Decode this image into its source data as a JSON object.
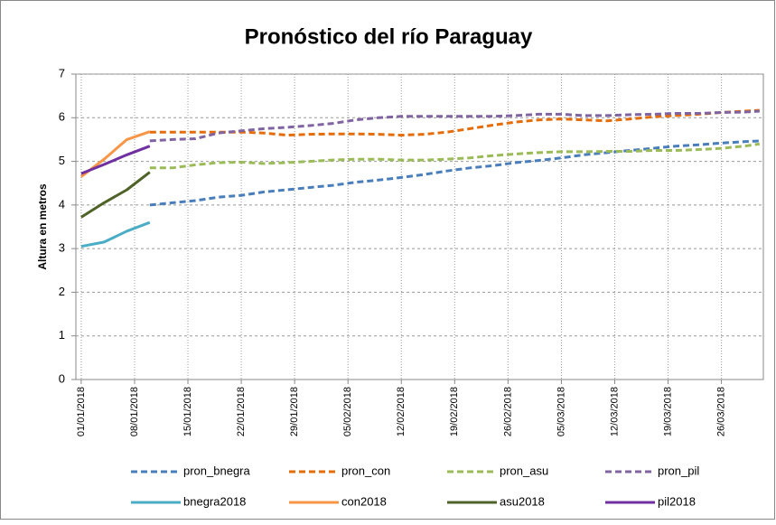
{
  "chart_data": {
    "type": "line",
    "title": "Pronóstico del río Paraguay",
    "y_label": "Altura en metros",
    "x": [
      "01/01/2018",
      "04/01/2018",
      "07/01/2018",
      "10/01/2018",
      "13/01/2018",
      "16/01/2018",
      "19/01/2018",
      "22/01/2018",
      "25/01/2018",
      "28/01/2018",
      "31/01/2018",
      "03/02/2018",
      "06/02/2018",
      "09/02/2018",
      "12/02/2018",
      "15/02/2018",
      "18/02/2018",
      "21/02/2018",
      "24/02/2018",
      "27/02/2018",
      "02/03/2018",
      "05/03/2018",
      "08/03/2018",
      "11/03/2018",
      "14/03/2018",
      "17/03/2018",
      "20/03/2018",
      "23/03/2018",
      "26/03/2018",
      "29/03/2018",
      "31/03/2018"
    ],
    "xlim": [
      "01/01/2018",
      "31/03/2018"
    ],
    "xticks": [
      "01/01/2018",
      "08/01/2018",
      "15/01/2018",
      "22/01/2018",
      "29/01/2018",
      "05/02/2018",
      "12/02/2018",
      "19/02/2018",
      "26/02/2018",
      "05/03/2018",
      "12/03/2018",
      "19/03/2018",
      "26/03/2018"
    ],
    "ylim": [
      0,
      7
    ],
    "yticks": [
      0,
      1,
      2,
      3,
      4,
      5,
      6,
      7
    ],
    "grid": true,
    "legend": "bottom",
    "series": [
      {
        "name": "pron_bnegra",
        "color": "#4a7ebb",
        "style": "dashed",
        "values": [
          null,
          null,
          null,
          4.0,
          4.05,
          4.1,
          4.18,
          4.22,
          4.3,
          4.35,
          4.4,
          4.45,
          4.52,
          4.57,
          4.63,
          4.7,
          4.78,
          4.85,
          4.9,
          4.97,
          5.02,
          5.08,
          5.15,
          5.2,
          5.25,
          5.3,
          5.35,
          5.38,
          5.42,
          5.45,
          5.47
        ]
      },
      {
        "name": "pron_con",
        "color": "#e46c0a",
        "style": "dashed",
        "values": [
          null,
          null,
          null,
          5.67,
          5.67,
          5.67,
          5.67,
          5.67,
          5.65,
          5.6,
          5.62,
          5.63,
          5.63,
          5.62,
          5.6,
          5.62,
          5.67,
          5.75,
          5.83,
          5.9,
          5.95,
          5.97,
          5.95,
          5.93,
          5.97,
          6.02,
          6.05,
          6.08,
          6.12,
          6.15,
          6.17
        ]
      },
      {
        "name": "pron_asu",
        "color": "#9bbb59",
        "style": "dashed",
        "values": [
          null,
          null,
          null,
          4.85,
          4.85,
          4.92,
          4.97,
          4.98,
          4.95,
          4.97,
          5.0,
          5.03,
          5.05,
          5.05,
          5.03,
          5.03,
          5.05,
          5.08,
          5.13,
          5.17,
          5.2,
          5.22,
          5.22,
          5.23,
          5.23,
          5.25,
          5.25,
          5.27,
          5.3,
          5.35,
          5.4
        ]
      },
      {
        "name": "pron_pil",
        "color": "#8064a2",
        "style": "dashed",
        "values": [
          null,
          null,
          null,
          5.47,
          5.5,
          5.52,
          5.65,
          5.7,
          5.75,
          5.78,
          5.82,
          5.87,
          5.95,
          6.0,
          6.03,
          6.03,
          6.03,
          6.03,
          6.03,
          6.05,
          6.08,
          6.08,
          6.05,
          6.05,
          6.07,
          6.08,
          6.1,
          6.1,
          6.12,
          6.13,
          6.15
        ]
      },
      {
        "name": "bnegra2018",
        "color": "#4bacc6",
        "style": "solid",
        "values": [
          3.05,
          3.15,
          3.4,
          3.6,
          null,
          null,
          null,
          null,
          null,
          null,
          null,
          null,
          null,
          null,
          null,
          null,
          null,
          null,
          null,
          null,
          null,
          null,
          null,
          null,
          null,
          null,
          null,
          null,
          null,
          null,
          null
        ]
      },
      {
        "name": "con2018",
        "color": "#f79646",
        "style": "solid",
        "values": [
          4.65,
          5.05,
          5.5,
          5.68,
          null,
          null,
          null,
          null,
          null,
          null,
          null,
          null,
          null,
          null,
          null,
          null,
          null,
          null,
          null,
          null,
          null,
          null,
          null,
          null,
          null,
          null,
          null,
          null,
          null,
          null,
          null
        ]
      },
      {
        "name": "asu2018",
        "color": "#4f6228",
        "style": "solid",
        "values": [
          3.72,
          4.05,
          4.35,
          4.75,
          null,
          null,
          null,
          null,
          null,
          null,
          null,
          null,
          null,
          null,
          null,
          null,
          null,
          null,
          null,
          null,
          null,
          null,
          null,
          null,
          null,
          null,
          null,
          null,
          null,
          null,
          null
        ]
      },
      {
        "name": "pil2018",
        "color": "#7030a0",
        "style": "solid",
        "values": [
          4.72,
          4.93,
          5.15,
          5.35,
          null,
          null,
          null,
          null,
          null,
          null,
          null,
          null,
          null,
          null,
          null,
          null,
          null,
          null,
          null,
          null,
          null,
          null,
          null,
          null,
          null,
          null,
          null,
          null,
          null,
          null,
          null
        ]
      }
    ]
  }
}
